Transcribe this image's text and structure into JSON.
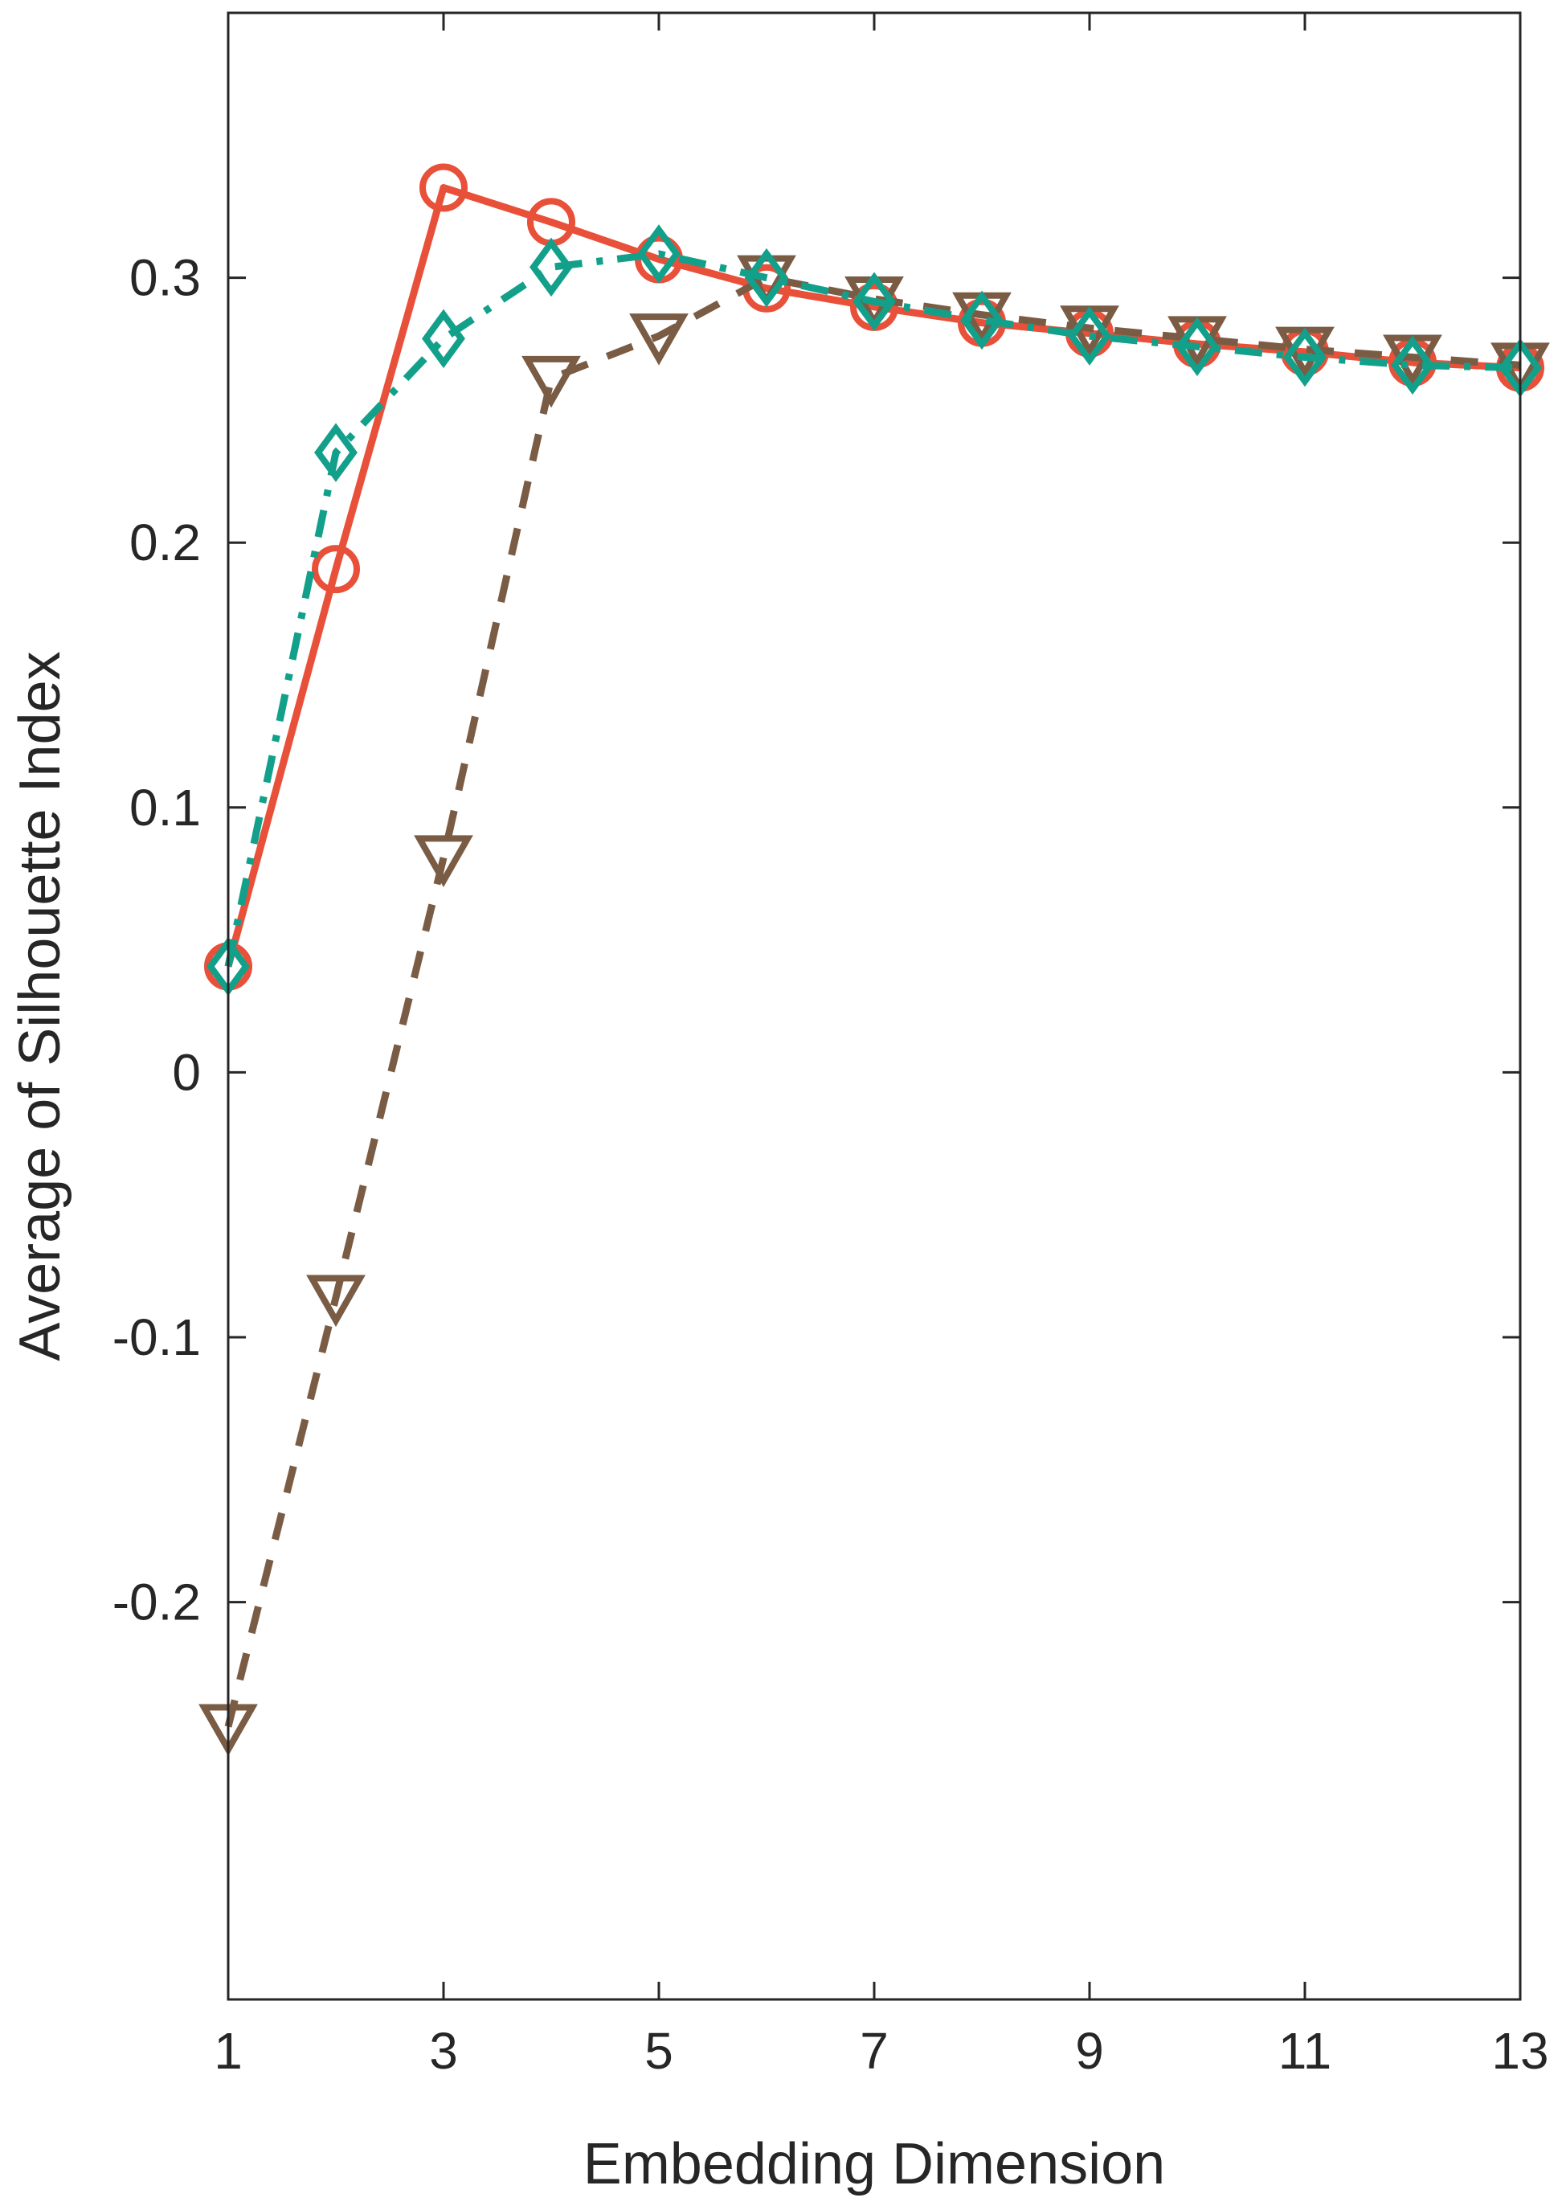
{
  "chart_data": {
    "type": "line",
    "title": "",
    "xlabel": "Embedding Dimension",
    "ylabel": "Average of Silhouette Index",
    "xlim": [
      1,
      13
    ],
    "ylim": [
      -0.35,
      0.4
    ],
    "x": [
      1,
      2,
      3,
      4,
      5,
      6,
      7,
      8,
      9,
      10,
      11,
      12,
      13
    ],
    "xticks": [
      1,
      3,
      5,
      7,
      9,
      11,
      13
    ],
    "xtick_labels": [
      "1",
      "3",
      "5",
      "7",
      "9",
      "11",
      "13"
    ],
    "yticks": [
      -0.2,
      -0.1,
      0,
      0.1,
      0.2,
      0.3
    ],
    "ytick_labels": [
      "-0.2",
      "-0.1",
      "0",
      "0.1",
      "0.2",
      "0.3"
    ],
    "grid": false,
    "legend": "none",
    "series": [
      {
        "color": "#e8503a",
        "line_style": "solid",
        "marker": "circle",
        "values": [
          0.04,
          0.19,
          0.334,
          0.321,
          0.307,
          0.296,
          0.289,
          0.283,
          0.279,
          0.275,
          0.272,
          0.268,
          0.266
        ]
      },
      {
        "color": "#7a5c45",
        "line_style": "dashed",
        "marker": "triangle-down",
        "values": [
          -0.247,
          -0.085,
          0.081,
          0.262,
          0.278,
          0.3,
          0.292,
          0.286,
          0.281,
          0.277,
          0.273,
          0.27,
          0.267
        ]
      },
      {
        "color": "#12a08a",
        "line_style": "dash-dot",
        "marker": "diamond",
        "values": [
          0.04,
          0.234,
          0.277,
          0.304,
          0.309,
          0.3,
          0.291,
          0.284,
          0.278,
          0.274,
          0.27,
          0.267,
          0.266
        ]
      }
    ]
  }
}
